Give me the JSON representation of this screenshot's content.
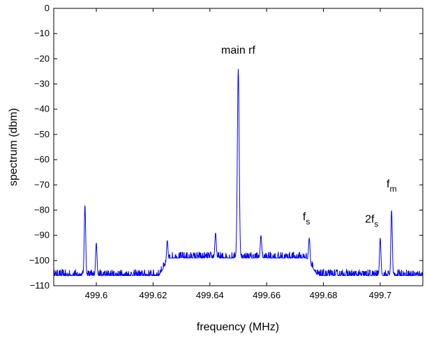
{
  "chart_data": {
    "type": "line",
    "title": "",
    "xlabel": "frequency (MHz)",
    "ylabel": "spectrum (dbm)",
    "xlim": [
      499.585,
      499.715
    ],
    "ylim": [
      -110,
      0
    ],
    "grid": false,
    "x_ticks": [
      499.6,
      499.62,
      499.64,
      499.66,
      499.68,
      499.7
    ],
    "x_tick_labels": [
      "499.6",
      "499.62",
      "499.64",
      "499.66",
      "499.68",
      "499.7"
    ],
    "y_ticks": [
      0,
      -10,
      -20,
      -30,
      -40,
      -50,
      -60,
      -70,
      -80,
      -90,
      -100,
      -110
    ],
    "y_tick_labels": [
      "0",
      "−10",
      "−20",
      "−30",
      "−40",
      "−50",
      "−60",
      "−70",
      "−80",
      "−90",
      "−100",
      "−110"
    ],
    "series": [
      {
        "color": "#0000ff",
        "noise_floor": -106,
        "x_start": 499.585,
        "x_end": 499.715,
        "peaks": [
          {
            "x": 499.596,
            "y": -78
          },
          {
            "x": 499.6,
            "y": -93
          },
          {
            "x": 499.625,
            "y": -92
          },
          {
            "x": 499.642,
            "y": -89
          },
          {
            "x": 499.65,
            "y": -24
          },
          {
            "x": 499.658,
            "y": -90
          },
          {
            "x": 499.675,
            "y": -91
          },
          {
            "x": 499.7,
            "y": -91
          },
          {
            "x": 499.704,
            "y": -80
          }
        ],
        "raised_floor": [
          {
            "x_from": 499.622,
            "x_to": 499.678,
            "level": -99
          }
        ]
      }
    ],
    "annotations": [
      {
        "text": "main rf",
        "sub": "",
        "x": 499.65,
        "y": -18
      },
      {
        "text": "f",
        "sub": "s",
        "x": 499.674,
        "y": -84
      },
      {
        "text": "2f",
        "sub": "s",
        "x": 499.697,
        "y": -85
      },
      {
        "text": "f",
        "sub": "m",
        "x": 499.704,
        "y": -71
      }
    ]
  }
}
